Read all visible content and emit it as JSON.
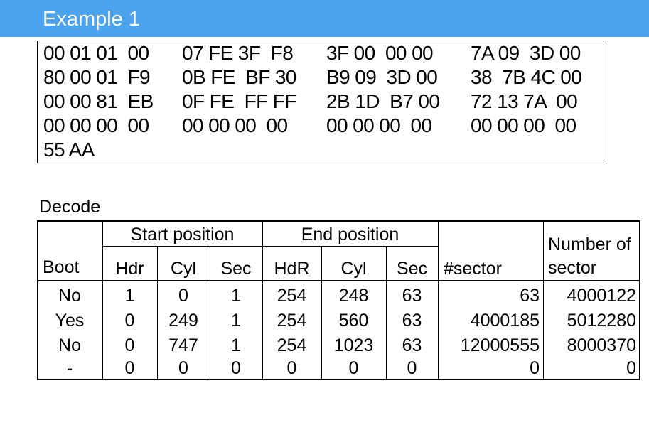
{
  "title": "Example 1",
  "hex_rows": [
    [
      "00 01 01  00",
      "07 FE 3F  F8",
      "3F 00  00 00",
      "7A 09  3D 00"
    ],
    [
      "80 00 01  F9",
      "0B FE  BF 30",
      "B9 09  3D 00",
      "38  7B 4C 00"
    ],
    [
      "00 00 81  EB",
      "0F FE  FF FF",
      "2B 1D  B7 00",
      "72 13 7A  00"
    ],
    [
      "00 00 00  00",
      "00 00 00  00",
      "00 00 00  00",
      "00 00 00  00"
    ],
    [
      "55 AA",
      "",
      "",
      ""
    ]
  ],
  "decode_label": "Decode",
  "table": {
    "group_headers": {
      "start": "Start position",
      "end": "End position"
    },
    "headers": {
      "boot": "Boot",
      "start_hdr": "Hdr",
      "start_cyl": "Cyl",
      "start_sec": "Sec",
      "end_hdr": "HdR",
      "end_cyl": "Cyl",
      "end_sec": "Sec",
      "sector": "#sector",
      "number_line1": "Number of",
      "number_line2": "sector"
    },
    "rows": [
      [
        "No",
        "1",
        "0",
        "1",
        "254",
        "248",
        "63",
        "63",
        "4000122"
      ],
      [
        "Yes",
        "0",
        "249",
        "1",
        "254",
        "560",
        "63",
        "4000185",
        "5012280"
      ],
      [
        "No",
        "0",
        "747",
        "1",
        "254",
        "1023",
        "63",
        "12000555",
        "8000370"
      ],
      [
        "-",
        "0",
        "0",
        "0",
        "0",
        "0",
        "0",
        "0",
        "0"
      ]
    ]
  },
  "colors": {
    "title_bar": "#4aa3ec",
    "title_text": "#ffffff"
  }
}
